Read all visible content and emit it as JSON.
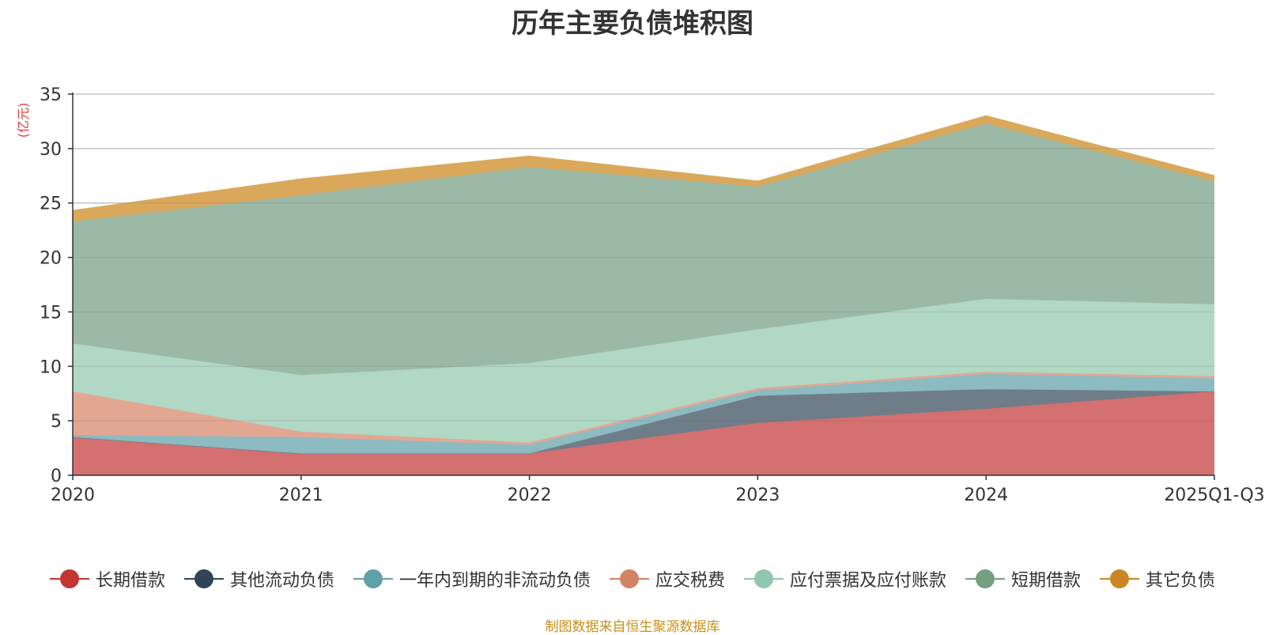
{
  "chart_data": {
    "type": "area",
    "stacked": true,
    "title": "历年主要负债堆积图",
    "unit_label": "(亿元)",
    "categories": [
      "2020",
      "2021",
      "2022",
      "2023",
      "2024",
      "2025Q1-Q3"
    ],
    "ylim": [
      0,
      35
    ],
    "yticks": [
      0,
      5,
      10,
      15,
      20,
      25,
      30,
      35
    ],
    "grid": true,
    "legend_position": "bottom",
    "series": [
      {
        "name": "长期借款",
        "color": "#c23531",
        "fill": "#d4706f",
        "values": [
          3.5,
          2.0,
          2.0,
          4.8,
          6.1,
          7.7
        ]
      },
      {
        "name": "其他流动负债",
        "color": "#2f4554",
        "fill": "#6f7d88",
        "values": [
          0.0,
          0.0,
          0.0,
          2.5,
          1.8,
          0.0
        ]
      },
      {
        "name": "一年内到期的非流动负债",
        "color": "#61a0a8",
        "fill": "#8cbbc1",
        "values": [
          0.2,
          1.5,
          0.8,
          0.5,
          1.4,
          1.2
        ]
      },
      {
        "name": "应交税费",
        "color": "#d48265",
        "fill": "#e2a793",
        "values": [
          4.0,
          0.5,
          0.2,
          0.2,
          0.2,
          0.2
        ]
      },
      {
        "name": "应付票据及应付账款",
        "color": "#91c7ae",
        "fill": "#b1d7c5",
        "values": [
          4.4,
          5.2,
          7.3,
          5.4,
          6.7,
          6.6
        ]
      },
      {
        "name": "短期借款",
        "color": "#749f83",
        "fill": "#9cb9a6",
        "values": [
          11.2,
          16.5,
          18.0,
          13.1,
          16.1,
          11.3
        ]
      },
      {
        "name": "其它负债",
        "color": "#ca8622",
        "fill": "#d9a85b",
        "values": [
          1.0,
          1.5,
          1.0,
          0.5,
          0.7,
          0.5
        ]
      }
    ],
    "source": "制图数据来自恒生聚源数据库"
  }
}
